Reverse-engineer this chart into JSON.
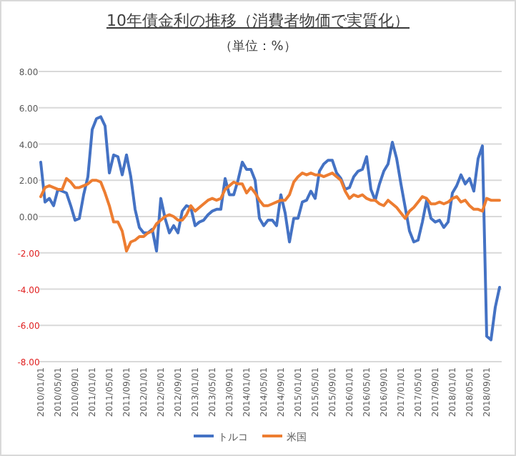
{
  "chart_data": {
    "type": "line",
    "title": "10年債金利の推移（消費者物価で実質化）",
    "subtitle": "（単位：%）",
    "categories": [
      "2010/01/01",
      null,
      null,
      null,
      "2010/05/01",
      null,
      null,
      null,
      "2010/09/01",
      null,
      null,
      null,
      "2011/01/01",
      null,
      null,
      null,
      "2011/05/01",
      null,
      null,
      null,
      "2011/09/01",
      null,
      null,
      null,
      "2012/01/01",
      null,
      null,
      null,
      "2012/05/01",
      null,
      null,
      null,
      "2012/09/01",
      null,
      null,
      null,
      "2013/01/01",
      null,
      null,
      null,
      "2013/05/01",
      null,
      null,
      null,
      "2013/09/01",
      null,
      null,
      null,
      "2014/01/01",
      null,
      null,
      null,
      "2014/05/01",
      null,
      null,
      null,
      "2014/09/01",
      null,
      null,
      null,
      "2015/01/01",
      null,
      null,
      null,
      "2015/05/01",
      null,
      null,
      null,
      "2015/09/01",
      null,
      null,
      null,
      "2016/01/01",
      null,
      null,
      null,
      "2016/05/01",
      null,
      null,
      null,
      "2016/09/01",
      null,
      null,
      null,
      "2017/01/01",
      null,
      null,
      null,
      "2017/05/01",
      null,
      null,
      null,
      "2017/09/01",
      null,
      null,
      null,
      "2018/01/01",
      null,
      null,
      null,
      "2018/05/01",
      null,
      null,
      null,
      "2018/09/01",
      null,
      null,
      null
    ],
    "series": [
      {
        "name": "トルコ",
        "color": "#4472c4",
        "values": [
          3.0,
          0.8,
          1.0,
          0.6,
          1.5,
          1.4,
          1.3,
          0.6,
          -0.2,
          -0.1,
          1.2,
          2.2,
          4.8,
          5.4,
          5.5,
          5.0,
          2.4,
          3.4,
          3.3,
          2.3,
          3.4,
          2.2,
          0.4,
          -0.6,
          -0.9,
          -0.9,
          -0.7,
          -1.9,
          1.0,
          -0.1,
          -0.9,
          -0.5,
          -0.9,
          0.3,
          0.6,
          0.5,
          -0.5,
          -0.3,
          -0.2,
          0.1,
          0.3,
          0.4,
          0.4,
          2.1,
          1.2,
          1.2,
          2.0,
          3.0,
          2.6,
          2.6,
          2.0,
          -0.1,
          -0.5,
          -0.2,
          -0.2,
          -0.5,
          1.2,
          0.2,
          -1.4,
          -0.1,
          -0.1,
          0.8,
          0.9,
          1.4,
          1.0,
          2.5,
          2.9,
          3.1,
          3.1,
          2.4,
          2.1,
          1.5,
          1.6,
          2.2,
          2.5,
          2.6,
          3.3,
          1.5,
          0.9,
          1.8,
          2.5,
          2.9,
          4.1,
          3.2,
          1.8,
          0.5,
          -0.8,
          -1.4,
          -1.3,
          -0.3,
          0.9,
          -0.1,
          -0.3,
          -0.2,
          -0.6,
          -0.3,
          1.3,
          1.7,
          2.3,
          1.8,
          2.1,
          1.4,
          3.2,
          3.9,
          -6.6,
          -6.8,
          -5.0,
          -3.9
        ]
      },
      {
        "name": "米国",
        "color": "#ed7d31",
        "values": [
          1.1,
          1.6,
          1.7,
          1.6,
          1.5,
          1.5,
          2.1,
          1.9,
          1.6,
          1.6,
          1.7,
          1.8,
          2.0,
          2.0,
          1.9,
          1.3,
          0.6,
          -0.3,
          -0.3,
          -0.8,
          -1.9,
          -1.4,
          -1.3,
          -1.1,
          -1.1,
          -0.9,
          -0.8,
          -0.4,
          -0.2,
          0.0,
          0.1,
          0.0,
          -0.2,
          -0.2,
          0.1,
          0.6,
          0.3,
          0.5,
          0.7,
          0.9,
          1.0,
          0.9,
          1.0,
          1.5,
          1.7,
          1.9,
          1.8,
          1.8,
          1.3,
          1.6,
          1.3,
          0.9,
          0.6,
          0.6,
          0.7,
          0.8,
          0.9,
          0.9,
          1.2,
          1.9,
          2.2,
          2.4,
          2.3,
          2.4,
          2.3,
          2.3,
          2.2,
          2.3,
          2.4,
          2.2,
          2.0,
          1.4,
          1.0,
          1.2,
          1.1,
          1.2,
          1.0,
          0.9,
          0.9,
          0.7,
          0.6,
          0.9,
          0.7,
          0.5,
          0.2,
          -0.1,
          0.3,
          0.5,
          0.8,
          1.1,
          1.0,
          0.7,
          0.7,
          0.8,
          0.7,
          0.8,
          1.0,
          1.1,
          0.8,
          0.9,
          0.6,
          0.4,
          0.4,
          0.3,
          1.0,
          0.9,
          0.9,
          0.9
        ]
      }
    ],
    "ylim": [
      -8,
      8
    ],
    "yticks": [
      {
        "value": 8,
        "label": "8.00"
      },
      {
        "value": 6,
        "label": "6.00"
      },
      {
        "value": 4,
        "label": "4.00"
      },
      {
        "value": 2,
        "label": "2.00"
      },
      {
        "value": 0,
        "label": "0.00"
      },
      {
        "value": -2,
        "label": "-2.00"
      },
      {
        "value": -4,
        "label": "-4.00"
      },
      {
        "value": -6,
        "label": "-6.00"
      },
      {
        "value": -8,
        "label": "-8.00"
      }
    ],
    "grid": "y",
    "legend": "bottom",
    "marker": "none",
    "line_style": "solid"
  }
}
